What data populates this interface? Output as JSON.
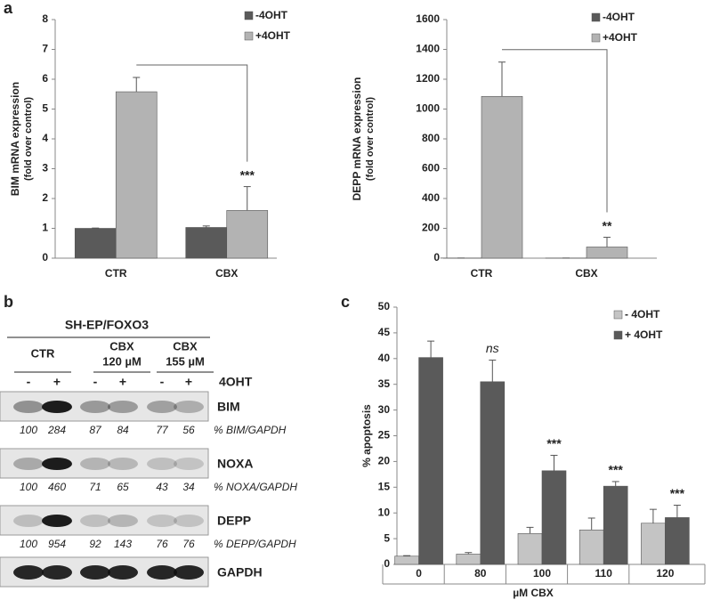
{
  "panel_labels": [
    "a",
    "b",
    "c"
  ],
  "chart_data": [
    {
      "type": "bar",
      "ylabel": "BIM mRNA expression",
      "ylabel_sub": "(fold over control)",
      "categories": [
        "CTR",
        "CBX"
      ],
      "ylim": [
        0,
        8
      ],
      "yticks": [
        0,
        1,
        2,
        3,
        4,
        5,
        6,
        7,
        8
      ],
      "bracket": true,
      "series": [
        {
          "name": "-4OHT",
          "color": "#5a5a5a",
          "values": [
            1.0,
            1.03
          ],
          "errors": [
            0.01,
            0.05
          ],
          "significance": [
            null,
            null
          ]
        },
        {
          "name": "+4OHT",
          "color": "#b3b3b3",
          "values": [
            5.58,
            1.6
          ],
          "errors": [
            0.48,
            0.8
          ],
          "significance": [
            null,
            "***"
          ]
        }
      ]
    },
    {
      "type": "bar",
      "ylabel": "DEPP mRNA expression",
      "ylabel_sub": "(fold over control)",
      "categories": [
        "CTR",
        "CBX"
      ],
      "ylim": [
        0,
        1600
      ],
      "yticks": [
        0,
        200,
        400,
        600,
        800,
        1000,
        1200,
        1400,
        1600
      ],
      "bracket": true,
      "series": [
        {
          "name": "-4OHT",
          "color": "#5a5a5a",
          "values": [
            1,
            1
          ],
          "errors": [
            0,
            0
          ],
          "significance": [
            null,
            null
          ]
        },
        {
          "name": "+4OHT",
          "color": "#b3b3b3",
          "values": [
            1085,
            75
          ],
          "errors": [
            230,
            65
          ],
          "significance": [
            null,
            "**"
          ]
        }
      ]
    },
    {
      "type": "bar",
      "ylabel": "% apoptosis",
      "xlabel": "µM CBX",
      "categories": [
        "0",
        "80",
        "100",
        "110",
        "120"
      ],
      "ylim": [
        0,
        50
      ],
      "yticks": [
        0,
        5,
        10,
        15,
        20,
        25,
        30,
        35,
        40,
        45,
        50
      ],
      "bracket": false,
      "series": [
        {
          "name": "- 4OHT",
          "color": "#c4c4c4",
          "values": [
            1.6,
            2.0,
            6.0,
            6.7,
            8.0
          ],
          "errors": [
            0.1,
            0.3,
            1.2,
            2.3,
            2.7
          ],
          "significance": [
            null,
            null,
            null,
            null,
            null
          ]
        },
        {
          "name": "+ 4OHT",
          "color": "#5a5a5a",
          "values": [
            40.2,
            35.5,
            18.2,
            15.2,
            9.1
          ],
          "errors": [
            3.2,
            4.2,
            3.0,
            0.9,
            2.4
          ],
          "significance": [
            null,
            "ns",
            "***",
            "***",
            "***"
          ]
        }
      ]
    }
  ],
  "blot": {
    "title": "SH-EP/FOXO3",
    "groups": [
      [
        "CTR"
      ],
      [
        "CBX",
        "120 µM"
      ],
      [
        "CBX",
        "155 µM"
      ]
    ],
    "treatment": "4OHT",
    "lanes": [
      "-",
      "+",
      "-",
      "+",
      "-",
      "+"
    ],
    "rows": [
      {
        "protein": "BIM",
        "quant_label": "% BIM/GAPDH",
        "quant": [
          100,
          284,
          87,
          84,
          77,
          56
        ]
      },
      {
        "protein": "NOXA",
        "quant_label": "% NOXA/GAPDH",
        "quant": [
          100,
          460,
          71,
          65,
          43,
          34
        ]
      },
      {
        "protein": "DEPP",
        "quant_label": "% DEPP/GAPDH",
        "quant": [
          100,
          954,
          92,
          143,
          76,
          76
        ]
      },
      {
        "protein": "GAPDH"
      }
    ]
  }
}
